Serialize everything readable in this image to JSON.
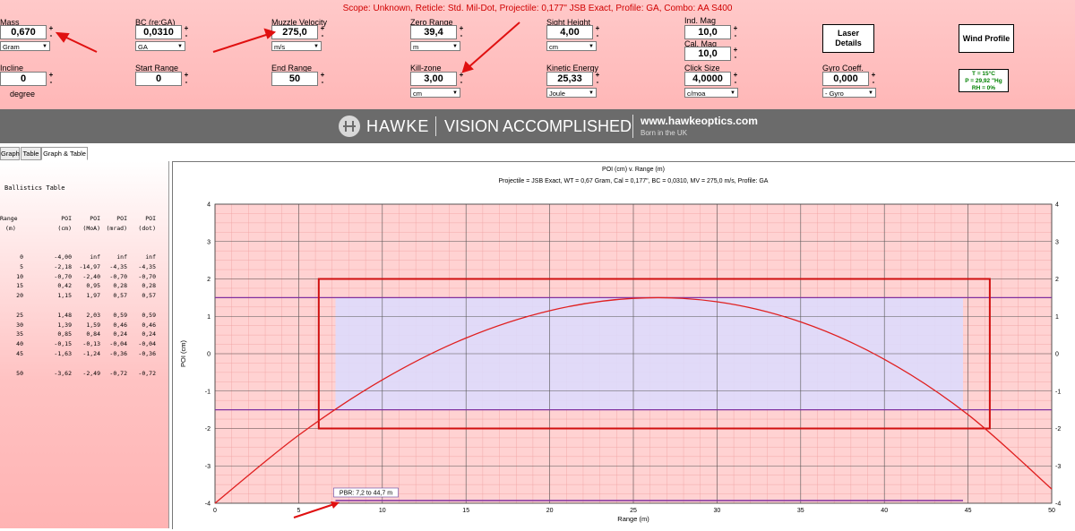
{
  "header": {
    "scope_line": "Scope: Unknown, Reticle: Std. Mil-Dot, Projectile: 0,177\" JSB Exact, Profile: GA, Combo: AA S400"
  },
  "inputs": {
    "mass": {
      "label": "Mass",
      "value": "0,670",
      "unit": "Gram"
    },
    "bc": {
      "label": "BC (re:GA)",
      "value": "0,0310",
      "unit": "GA"
    },
    "muzzle_velocity": {
      "label": "Muzzle Velocity",
      "value": "275,0",
      "unit": "m/s"
    },
    "zero_range": {
      "label": "Zero Range",
      "value": "39,4",
      "unit": "m"
    },
    "sight_height": {
      "label": "Sight Height",
      "value": "4,00",
      "unit": "cm"
    },
    "ind_mag": {
      "label": "Ind. Mag",
      "value": "10,0"
    },
    "cal_mag": {
      "label": "Cal. Mag",
      "value": "10,0"
    },
    "incline": {
      "label": "Incline",
      "value": "0",
      "unit": "degree"
    },
    "start_range": {
      "label": "Start Range",
      "value": "0"
    },
    "end_range": {
      "label": "End Range",
      "value": "50"
    },
    "kill_zone": {
      "label": "Kill-zone",
      "value": "3,00",
      "unit": "cm"
    },
    "kinetic_energy": {
      "label": "Kinetic Energy",
      "value": "25,33",
      "unit": "Joule"
    },
    "click_size": {
      "label": "Click Size",
      "value": "4,0000",
      "unit": "c/moa"
    },
    "gyro": {
      "label": "Gyro Coeff.",
      "value": "0,000",
      "unit": "- Gyro"
    }
  },
  "buttons": {
    "laser": "Laser Details",
    "wind": "Wind Profile"
  },
  "atmosphere": {
    "t": "T = 15°C",
    "p": "P = 29,92 \"Hg",
    "rh": "RH = 0%"
  },
  "banner": {
    "brand": "HAWKE",
    "tagline": "VISION ACCOMPLISHED",
    "url": "www.hawkeoptics.com",
    "born": "Born in the UK"
  },
  "tabs": [
    "Graph",
    "Table",
    "Graph & Table"
  ],
  "table": {
    "title": "Ballistics Table",
    "headers": [
      [
        "Range",
        "(m)"
      ],
      [
        "POI",
        "(cm)"
      ],
      [
        "POI",
        "(MoA)"
      ],
      [
        "POI",
        "(mrad)"
      ],
      [
        "POI",
        "(dot)"
      ]
    ],
    "groups": [
      [
        [
          "0",
          "-4,00",
          "inf",
          "inf",
          "inf"
        ],
        [
          "5",
          "-2,18",
          "-14,97",
          "-4,35",
          "-4,35"
        ],
        [
          "10",
          "-0,70",
          "-2,40",
          "-0,70",
          "-0,70"
        ],
        [
          "15",
          "0,42",
          "0,95",
          "0,28",
          "0,28"
        ],
        [
          "20",
          "1,15",
          "1,97",
          "0,57",
          "0,57"
        ]
      ],
      [
        [
          "25",
          "1,48",
          "2,03",
          "0,59",
          "0,59"
        ],
        [
          "30",
          "1,39",
          "1,59",
          "0,46",
          "0,46"
        ],
        [
          "35",
          "0,85",
          "0,84",
          "0,24",
          "0,24"
        ],
        [
          "40",
          "-0,15",
          "-0,13",
          "-0,04",
          "-0,04"
        ],
        [
          "45",
          "-1,63",
          "-1,24",
          "-0,36",
          "-0,36"
        ]
      ],
      [
        [
          "50",
          "-3,62",
          "-2,49",
          "-0,72",
          "-0,72"
        ]
      ]
    ]
  },
  "chart_data": {
    "type": "line",
    "title": "POI (cm) v. Range (m)",
    "subtitle": "Projectile = JSB Exact, WT = 0,67 Gram, Cal = 0,177\", BC = 0,0310, MV = 275,0 m/s, Profile: GA",
    "xlabel": "Range (m)",
    "ylabel": "POI (cm)",
    "xlim": [
      0,
      50
    ],
    "ylim": [
      -4,
      4
    ],
    "xticks": [
      0,
      5,
      10,
      15,
      20,
      25,
      30,
      35,
      40,
      45,
      50
    ],
    "yticks": [
      -4,
      -3,
      -2,
      -1,
      0,
      1,
      2,
      3,
      4
    ],
    "grid": true,
    "series": [
      {
        "x": [
          0,
          5,
          10,
          15,
          20,
          25,
          30,
          35,
          40,
          45,
          50
        ],
        "y": [
          -4.0,
          -2.18,
          -0.7,
          0.42,
          1.15,
          1.48,
          1.39,
          0.85,
          -0.15,
          -1.63,
          -3.62
        ]
      }
    ],
    "kill_zone_box": {
      "x": [
        6.2,
        46.3
      ],
      "y": [
        -2.0,
        2.0
      ]
    },
    "pbr_band": {
      "x": [
        7.2,
        44.7
      ],
      "y": [
        -1.5,
        1.5
      ]
    },
    "pbr_label": "PBR: 7,2 to 44,7 m",
    "colors": {
      "trajectory": "#e02020",
      "box": "#d01010",
      "band": "#8030a0",
      "shade": "#dcdcff"
    }
  }
}
